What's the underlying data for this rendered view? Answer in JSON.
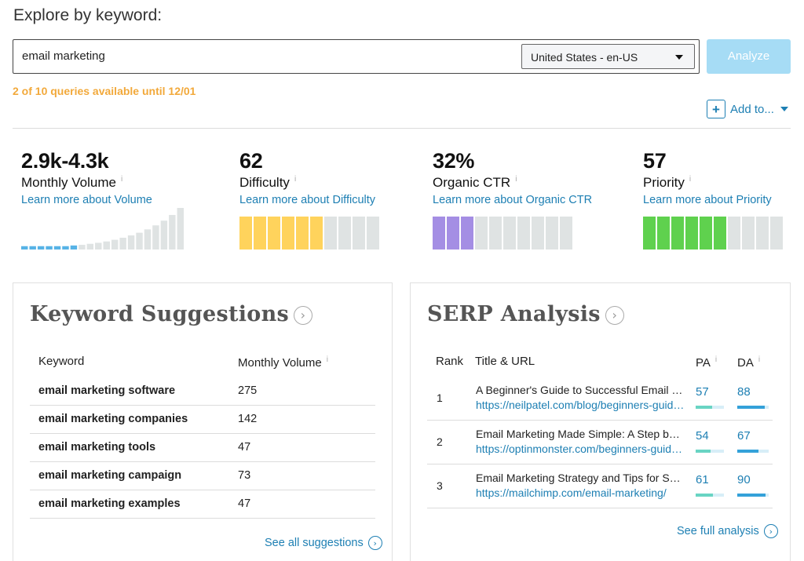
{
  "page": {
    "title": "Explore by keyword:"
  },
  "search": {
    "value": "email marketing",
    "locale": "United States - en-US",
    "analyze_label": "Analyze",
    "quota_note": "2 of 10 queries available until 12/01"
  },
  "actions": {
    "add_to_label": "Add to..."
  },
  "metrics": {
    "volume": {
      "value": "2.9k-4.3k",
      "label": "Monthly Volume",
      "link": "Learn more about Volume",
      "bar_levels": [
        1,
        1,
        1,
        1,
        1,
        1,
        1.2,
        1.4,
        1.7,
        2,
        2.4,
        2.9,
        3.5,
        4.2,
        5,
        6,
        7.2,
        8.6,
        10.3,
        12.4
      ]
    },
    "difficulty": {
      "value": "62",
      "label": "Difficulty",
      "link": "Learn more about Difficulty",
      "segments_total": 10,
      "segments_filled": 6,
      "color": "#ffd35c"
    },
    "ctr": {
      "value": "32%",
      "label": "Organic CTR",
      "link": "Learn more about Organic CTR",
      "segments_total": 10,
      "segments_filled": 3,
      "color": "#a48ee4"
    },
    "priority": {
      "value": "57",
      "label": "Priority",
      "link": "Learn more about Priority",
      "segments_total": 10,
      "segments_filled": 6,
      "color": "#5fd14e"
    }
  },
  "keyword_suggestions": {
    "title": "Keyword Suggestions",
    "col_keyword": "Keyword",
    "col_volume": "Monthly Volume",
    "rows": [
      {
        "keyword": "email marketing software",
        "volume": "275"
      },
      {
        "keyword": "email marketing companies",
        "volume": "142"
      },
      {
        "keyword": "email marketing tools",
        "volume": "47"
      },
      {
        "keyword": "email marketing campaign",
        "volume": "73"
      },
      {
        "keyword": "email marketing examples",
        "volume": "47"
      }
    ],
    "see_all": "See all suggestions"
  },
  "serp": {
    "title": "SERP Analysis",
    "col_rank": "Rank",
    "col_title": "Title & URL",
    "col_pa": "PA",
    "col_da": "DA",
    "rows": [
      {
        "rank": "1",
        "title": "A Beginner's Guide to Successful Email Marketing",
        "url": "https://neilpatel.com/blog/beginners-guide-email-marketing/",
        "pa": "57",
        "da": "88"
      },
      {
        "rank": "2",
        "title": "Email Marketing Made Simple: A Step by Step Guide",
        "url": "https://optinmonster.com/beginners-guide-email-marketing/",
        "pa": "54",
        "da": "67"
      },
      {
        "rank": "3",
        "title": "Email Marketing Strategy and Tips for Small Business",
        "url": "https://mailchimp.com/email-marketing/",
        "pa": "61",
        "da": "90"
      }
    ],
    "see_full": "See full analysis"
  },
  "icons": {
    "info": "info-icon",
    "plus": "plus-icon",
    "circle_arrow": "circle-arrow-icon",
    "caret": "caret-down-icon"
  },
  "colors": {
    "accent": "#1d7fb3",
    "warning": "#f2a93b",
    "analyze_bg": "#a6dcf5"
  }
}
